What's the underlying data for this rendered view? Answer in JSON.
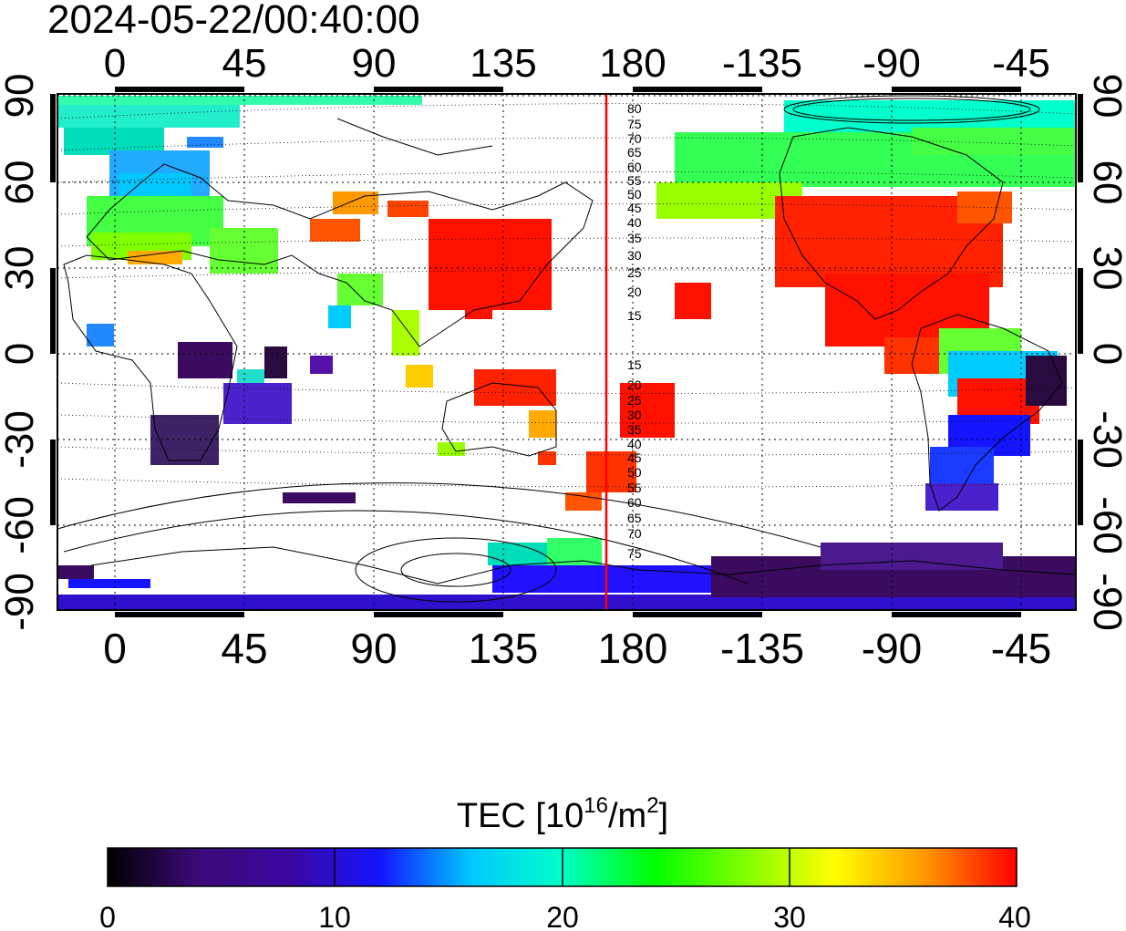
{
  "map": {
    "timestamp": "2024-05-22/00:40:00",
    "top_lon_labels": [
      "0",
      "45",
      "90",
      "135",
      "180",
      "-135",
      "-90",
      "-45"
    ],
    "bottom_lon_labels": [
      "0",
      "45",
      "90",
      "135",
      "180",
      "-135",
      "-90",
      "-45"
    ],
    "left_lat_labels": [
      "90",
      "60",
      "30",
      "0",
      "-30",
      "-60",
      "-90"
    ],
    "right_lat_labels": [
      "90",
      "60",
      "30",
      "0",
      "-30",
      "-60",
      "-90"
    ],
    "contour_labels_north": [
      "80",
      "75",
      "70",
      "65",
      "60",
      "55",
      "50",
      "45",
      "40",
      "35",
      "30",
      "25",
      "20",
      "15"
    ],
    "contour_labels_south": [
      "15",
      "20",
      "25",
      "30",
      "35",
      "40",
      "45",
      "50",
      "55",
      "60",
      "65",
      "70",
      "75"
    ],
    "terminator_longitude": 170,
    "grid": true,
    "colors": {
      "terminator": "#ff0000",
      "frame": "#000000",
      "grid": "#000000",
      "coastline": "#000000"
    }
  },
  "colorbar": {
    "title_main": "TEC  [10",
    "title_exp1": "16",
    "title_mid": "/m",
    "title_exp2": "2",
    "title_end": "]",
    "min": 0,
    "max": 40,
    "tick_labels": [
      "0",
      "10",
      "20",
      "30",
      "40"
    ],
    "colormap_stops": [
      "#000000",
      "#3c0a78",
      "#3a07a0",
      "#1414ff",
      "#00c8ff",
      "#00ffc8",
      "#00ff00",
      "#7fff00",
      "#ffff00",
      "#ff9600",
      "#ff0000"
    ]
  }
}
